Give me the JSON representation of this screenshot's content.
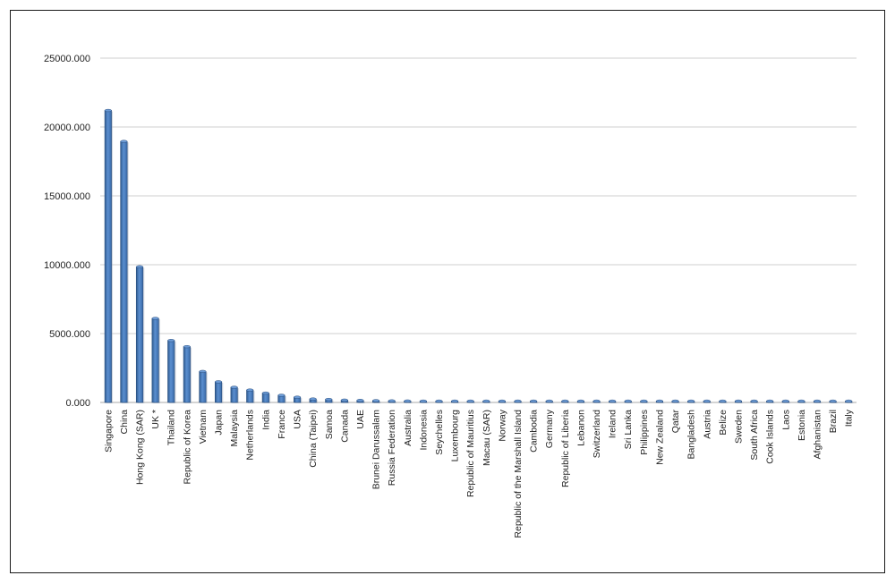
{
  "chart_data": {
    "type": "bar",
    "title": "",
    "xlabel": "",
    "ylabel": "",
    "ylim": [
      0,
      25000
    ],
    "yticks": [
      0,
      5000,
      10000,
      15000,
      20000,
      25000
    ],
    "ytick_labels": [
      "0.000",
      "5000.000",
      "10000.000",
      "15000.000",
      "20000.000",
      "25000.000"
    ],
    "grid": true,
    "legend": "none",
    "bar_color": "#4a7ebb",
    "bar_edge_color": "#2b4f7e",
    "categories": [
      "Singapore",
      "China",
      "Hong Kong (SAR)",
      "UK *",
      "Thailand",
      "Republic of Korea",
      "Vietnam",
      "Japan",
      "Malaysia",
      "Netherlands",
      "India",
      "France",
      "USA",
      "China (Taipei)",
      "Samoa",
      "Canada",
      "UAE",
      "Brunei Darussalam",
      "Russia Federation",
      "Australia",
      "Indonesia",
      "Seychelles",
      "Luxembourg",
      "Republic of Mauritius",
      "Macau (SAR)",
      "Norway",
      "Republic of the Marshall Island",
      "Cambodia",
      "Germany",
      "Republic of Liberia",
      "Lebanon",
      "Switzerland",
      "Ireland",
      "Sri Lanka",
      "Philippines",
      "New Zealand",
      "Qatar",
      "Bangladesh",
      "Austria",
      "Belize",
      "Sweden",
      "South Africa",
      "Cook Islands",
      "Laos",
      "Estonia",
      "Afghanistan",
      "Brazil",
      "Italy"
    ],
    "values": [
      21200,
      18950,
      9850,
      6100,
      4500,
      4050,
      2250,
      1500,
      1100,
      900,
      680,
      520,
      380,
      250,
      220,
      170,
      150,
      130,
      115,
      105,
      95,
      85,
      75,
      65,
      60,
      55,
      45,
      40,
      38,
      35,
      32,
      30,
      28,
      26,
      24,
      22,
      20,
      18,
      16,
      15,
      14,
      12,
      10,
      8,
      7,
      6,
      5,
      4
    ]
  }
}
